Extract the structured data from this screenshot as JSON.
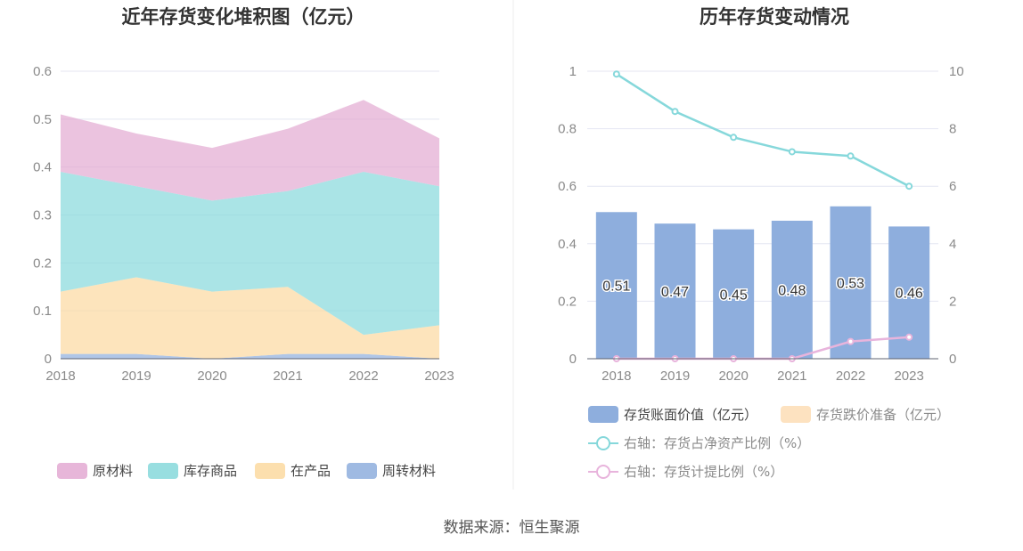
{
  "colors": {
    "raw_materials": "#e3a9d2",
    "goods_in_stock": "#86d8db",
    "work_in_progress": "#fcd9a0",
    "turnover_materials": "#8eaedd",
    "bar": "#8eaedd",
    "impairment": "#fde2c0",
    "net_asset_ratio_line": "#86d8db",
    "provision_ratio_line": "#e8b4dc",
    "grid": "#e4e6f2",
    "axis": "#5f6370",
    "divider": "#ececec"
  },
  "footer": {
    "source": "数据来源：恒生聚源"
  },
  "chart_data": [
    {
      "type": "area",
      "stacked": true,
      "title": "近年存货变化堆积图（亿元）",
      "categories": [
        "2018",
        "2019",
        "2020",
        "2021",
        "2022",
        "2023"
      ],
      "ylim": [
        0,
        0.6
      ],
      "yticks": [
        "0",
        "0.1",
        "0.2",
        "0.3",
        "0.4",
        "0.5",
        "0.6"
      ],
      "grid": true,
      "legend_position": "bottom",
      "series": [
        {
          "name": "周转材料",
          "color_key": "turnover_materials",
          "values": [
            0.01,
            0.01,
            0.0,
            0.01,
            0.01,
            0.0
          ]
        },
        {
          "name": "在产品",
          "color_key": "work_in_progress",
          "values": [
            0.13,
            0.16,
            0.14,
            0.14,
            0.04,
            0.07
          ]
        },
        {
          "name": "库存商品",
          "color_key": "goods_in_stock",
          "values": [
            0.25,
            0.19,
            0.19,
            0.2,
            0.34,
            0.29
          ]
        },
        {
          "name": "原材料",
          "color_key": "raw_materials",
          "values": [
            0.12,
            0.11,
            0.11,
            0.13,
            0.15,
            0.1
          ]
        }
      ],
      "legend_order": [
        "原材料",
        "库存商品",
        "在产品",
        "周转材料"
      ]
    },
    {
      "type": "bar",
      "title": "历年存货变动情况",
      "categories": [
        "2018",
        "2019",
        "2020",
        "2021",
        "2022",
        "2023"
      ],
      "ylim": [
        0,
        1
      ],
      "yticks": [
        "0",
        "0.2",
        "0.4",
        "0.6",
        "0.8",
        "1"
      ],
      "y2lim": [
        0,
        10
      ],
      "y2ticks": [
        "0",
        "2",
        "4",
        "6",
        "8",
        "10"
      ],
      "grid": true,
      "legend_position": "bottom",
      "series": [
        {
          "name": "存货账面价值（亿元）",
          "kind": "bar",
          "color_key": "bar",
          "values": [
            0.51,
            0.47,
            0.45,
            0.48,
            0.53,
            0.46
          ],
          "labels": [
            "0.51",
            "0.47",
            "0.45",
            "0.48",
            "0.53",
            "0.46"
          ]
        },
        {
          "name": "存货跌价准备（亿元）",
          "kind": "bar",
          "color_key": "impairment",
          "values": [
            0,
            0,
            0,
            0,
            0,
            0
          ]
        },
        {
          "name": "右轴：存货占净资产比例（%）",
          "kind": "line",
          "axis": "right",
          "color_key": "net_asset_ratio_line",
          "values": [
            9.9,
            8.6,
            7.7,
            7.2,
            7.05,
            6.0
          ]
        },
        {
          "name": "右轴：存货计提比例（%）",
          "kind": "line",
          "axis": "right",
          "color_key": "provision_ratio_line",
          "values": [
            0,
            0,
            0,
            0,
            0.6,
            0.75
          ]
        }
      ]
    }
  ]
}
